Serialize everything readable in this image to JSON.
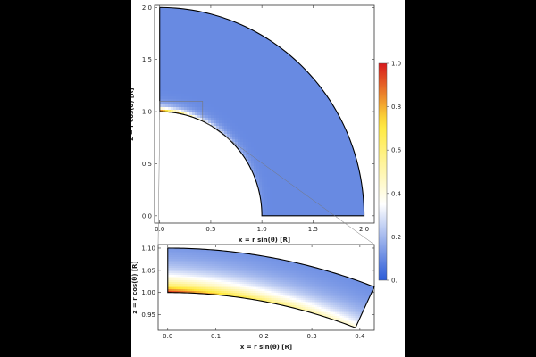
{
  "chart_data": [
    {
      "type": "heatmap",
      "panel": "main",
      "xlabel": "x = r sin(θ) [R]",
      "ylabel": "z = r cos(θ) [R]",
      "xlim": [
        -0.05,
        2.1
      ],
      "ylim": [
        -0.07,
        2.02
      ],
      "xticks": [
        0.0,
        0.5,
        1.0,
        1.5,
        2.0
      ],
      "xtick_labels": [
        "0.0",
        "0.5",
        "1.0",
        "1.5",
        "2.0"
      ],
      "yticks": [
        0.0,
        0.5,
        1.0,
        1.5,
        2.0
      ],
      "ytick_labels": [
        "0.0",
        "0.5",
        "1.0",
        "1.5",
        "2.0"
      ],
      "domain": {
        "shape": "annular-sector",
        "r_inner": 1.0,
        "r_outer": 2.0,
        "theta_deg": [
          0,
          90
        ]
      },
      "values_description": "field ≈ 0.1 across most of the domain; rises toward ~1.0 near r = 1 close to the pole",
      "zoom_box": {
        "x": [
          0.0,
          0.42
        ],
        "z": [
          0.92,
          1.1
        ]
      }
    },
    {
      "type": "heatmap",
      "panel": "zoom",
      "xlabel": "x = r sin(θ) [R]",
      "ylabel": "z = r cos(θ) [R]",
      "xlim": [
        -0.02,
        0.43
      ],
      "ylim": [
        0.915,
        1.108
      ],
      "xticks": [
        0.0,
        0.1,
        0.2,
        0.3,
        0.4
      ],
      "xtick_labels": [
        "0.0",
        "0.1",
        "0.2",
        "0.3",
        "0.4"
      ],
      "yticks": [
        0.95,
        1.0,
        1.05,
        1.1
      ],
      "ytick_labels": [
        "0.95",
        "1.00",
        "1.05",
        "1.10"
      ],
      "domain": {
        "shape": "annular-sector",
        "r_inner": 1.0,
        "r_outer": 1.1,
        "theta_deg": [
          0,
          23
        ]
      }
    }
  ],
  "colorbar": {
    "range": [
      0,
      1
    ],
    "ticks": [
      "0.",
      "0.2",
      "0.4",
      "0.6",
      "0.8",
      "1.0"
    ],
    "colors": [
      "#2b5bd7",
      "#ffffff",
      "#ffe93a",
      "#d7191c"
    ]
  }
}
